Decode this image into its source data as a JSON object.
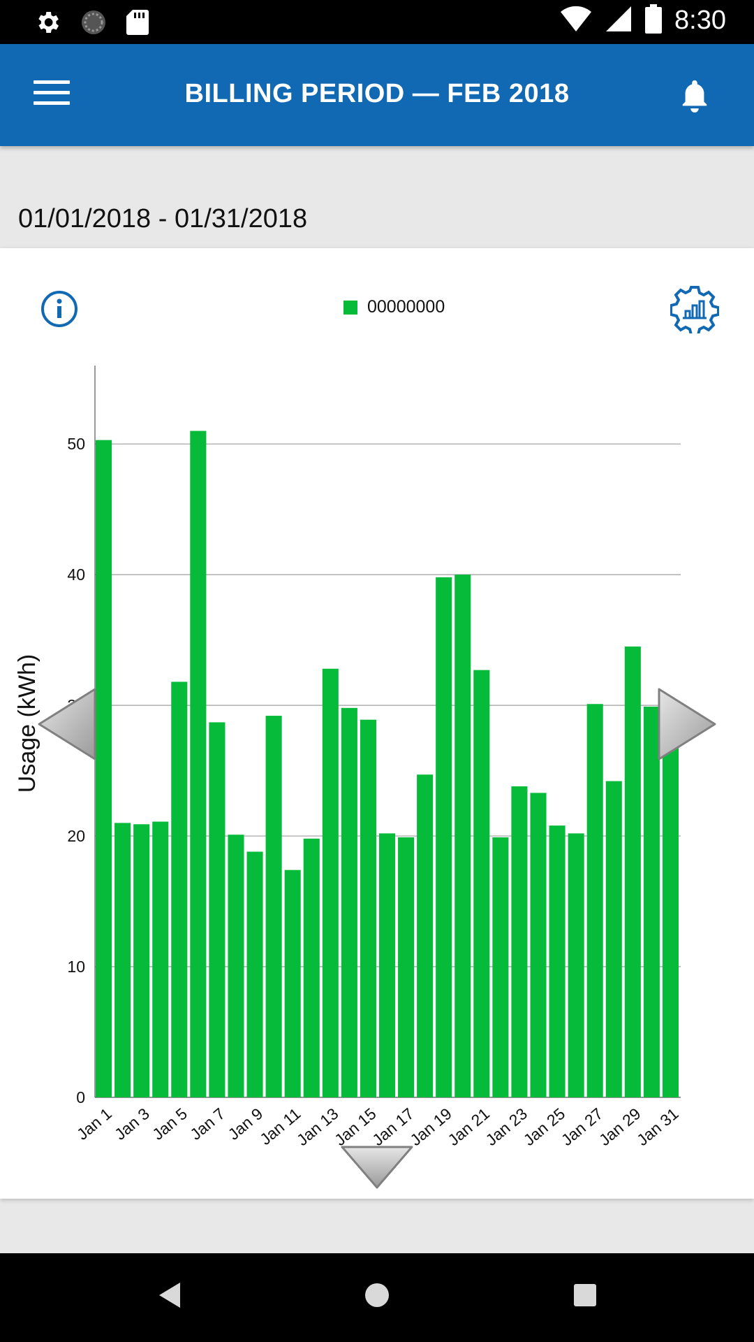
{
  "status_bar": {
    "time": "8:30",
    "left_icons": [
      "settings-icon",
      "sync-icon",
      "sd-card-icon"
    ],
    "right_icons": [
      "wifi-icon",
      "signal-icon",
      "battery-icon"
    ]
  },
  "app_bar": {
    "title": "BILLING PERIOD  —  FEB 2018",
    "menu_icon": "hamburger-menu-icon",
    "notification_icon": "bell-icon",
    "background": "#1169b4"
  },
  "date_range": "01/01/2018 - 01/31/2018",
  "card": {
    "info_icon": "info-icon",
    "settings_icon": "chart-settings-icon",
    "legend_label": "00000000",
    "prev_icon": "left-arrow-icon",
    "next_icon": "right-arrow-icon",
    "expand_icon": "down-arrow-icon"
  },
  "chart_data": {
    "type": "bar",
    "ylabel": "Usage (kWh)",
    "xlabel": "",
    "ylim": [
      0,
      56
    ],
    "yticks": [
      0,
      10,
      20,
      30,
      40,
      50
    ],
    "grid": true,
    "legend_position": "top-center",
    "color": "#07bb3a",
    "categories": [
      "Jan 1",
      "Jan 2",
      "Jan 3",
      "Jan 4",
      "Jan 5",
      "Jan 6",
      "Jan 7",
      "Jan 8",
      "Jan 9",
      "Jan 10",
      "Jan 11",
      "Jan 12",
      "Jan 13",
      "Jan 14",
      "Jan 15",
      "Jan 16",
      "Jan 17",
      "Jan 18",
      "Jan 19",
      "Jan 20",
      "Jan 21",
      "Jan 22",
      "Jan 23",
      "Jan 24",
      "Jan 25",
      "Jan 26",
      "Jan 27",
      "Jan 28",
      "Jan 29",
      "Jan 30",
      "Jan 31"
    ],
    "tick_labels": [
      "Jan 1",
      "Jan 3",
      "Jan 5",
      "Jan 7",
      "Jan 9",
      "Jan 11",
      "Jan 13",
      "Jan 15",
      "Jan 17",
      "Jan 19",
      "Jan 21",
      "Jan 23",
      "Jan 25",
      "Jan 27",
      "Jan 29",
      "Jan 31"
    ],
    "series": [
      {
        "name": "00000000",
        "values": [
          50.3,
          21.0,
          20.9,
          21.1,
          31.8,
          51.0,
          28.7,
          20.1,
          18.8,
          29.2,
          17.4,
          19.8,
          32.8,
          29.8,
          28.9,
          20.2,
          19.9,
          24.7,
          39.8,
          40.0,
          32.7,
          19.9,
          23.8,
          23.3,
          20.8,
          20.2,
          30.1,
          24.2,
          34.5,
          29.9,
          28.6
        ]
      }
    ]
  },
  "nav_bar": {
    "back_icon": "back-triangle-icon",
    "home_icon": "home-circle-icon",
    "recents_icon": "recents-square-icon"
  }
}
